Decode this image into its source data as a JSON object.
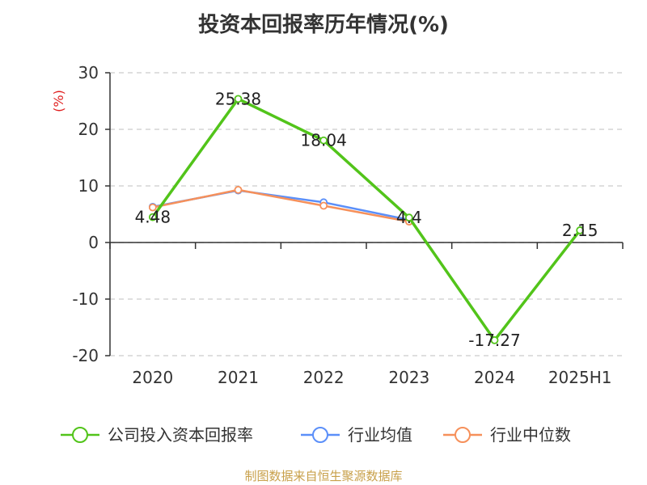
{
  "chart_data": {
    "type": "line",
    "title": "投资本回报率历年情况(%)",
    "ylabel": "(%)",
    "xlabel": "",
    "categories": [
      "2020",
      "2021",
      "2022",
      "2023",
      "2024",
      "2025H1"
    ],
    "ylim": [
      -20,
      30
    ],
    "yticks": [
      30,
      20,
      10,
      0,
      -10,
      -20
    ],
    "grid": true,
    "legend_position": "bottom",
    "series": [
      {
        "name": "公司投入资本回报率",
        "color": "#52c41a",
        "values": [
          4.48,
          25.38,
          18.04,
          4.4,
          -17.27,
          2.15
        ],
        "labels": [
          "4.48",
          "25.38",
          "18.04",
          "4.4",
          "-17.27",
          "2.15"
        ]
      },
      {
        "name": "行业均值",
        "color": "#5b8ff9",
        "values": [
          6.3,
          9.2,
          7.1,
          4.0,
          null,
          null
        ]
      },
      {
        "name": "行业中位数",
        "color": "#f6905a",
        "values": [
          6.2,
          9.3,
          6.5,
          3.7,
          null,
          null
        ]
      }
    ]
  },
  "colors": {
    "unit_label": "#e02020",
    "footer": "#c8a04a",
    "grid": "#cccccc",
    "axis": "#333333"
  },
  "footer": {
    "credit": "制图数据来自恒生聚源数据库"
  }
}
